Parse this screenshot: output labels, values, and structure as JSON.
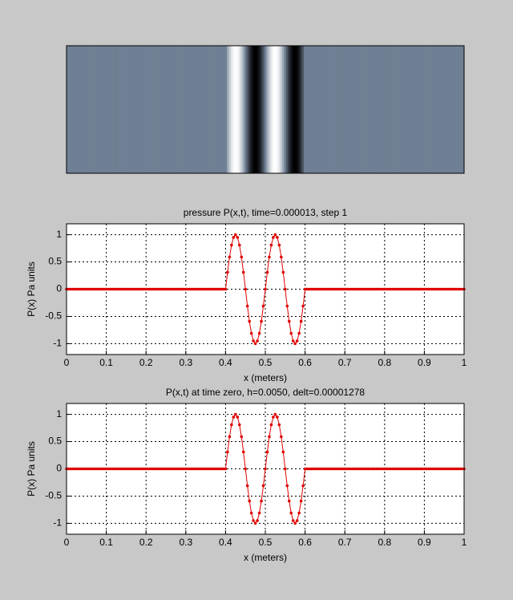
{
  "chart_data": [
    {
      "type": "image",
      "x": [
        0,
        0.005,
        0.01,
        0.015,
        0.02,
        0.025,
        0.03,
        0.035,
        0.04,
        0.045,
        0.05,
        0.055,
        0.06,
        0.065,
        0.07,
        0.075,
        0.08,
        0.085,
        0.09,
        0.095,
        0.1,
        0.105,
        0.11,
        0.115,
        0.12,
        0.125,
        0.13,
        0.135,
        0.14,
        0.145,
        0.15,
        0.155,
        0.16,
        0.165,
        0.17,
        0.175,
        0.18,
        0.185,
        0.19,
        0.195,
        0.2,
        0.205,
        0.21,
        0.215,
        0.22,
        0.225,
        0.23,
        0.235,
        0.24,
        0.245,
        0.25,
        0.255,
        0.26,
        0.265,
        0.27,
        0.275,
        0.28,
        0.285,
        0.29,
        0.295,
        0.3,
        0.305,
        0.31,
        0.315,
        0.32,
        0.325,
        0.33,
        0.335,
        0.34,
        0.345,
        0.35,
        0.355,
        0.36,
        0.365,
        0.37,
        0.375,
        0.38,
        0.385,
        0.39,
        0.395,
        0.4,
        0.405,
        0.41,
        0.415,
        0.42,
        0.425,
        0.43,
        0.435,
        0.44,
        0.445,
        0.45,
        0.455,
        0.46,
        0.465,
        0.47,
        0.475,
        0.48,
        0.485,
        0.49,
        0.495,
        0.5,
        0.505,
        0.51,
        0.515,
        0.52,
        0.525,
        0.53,
        0.535,
        0.54,
        0.545,
        0.55,
        0.555,
        0.56,
        0.565,
        0.57,
        0.575,
        0.58,
        0.585,
        0.59,
        0.595,
        0.6,
        0.605,
        0.61,
        0.615,
        0.62,
        0.625,
        0.63,
        0.635,
        0.64,
        0.645,
        0.65,
        0.655,
        0.66,
        0.665,
        0.67,
        0.675,
        0.68,
        0.685,
        0.69,
        0.695,
        0.7,
        0.705,
        0.71,
        0.715,
        0.72,
        0.725,
        0.73,
        0.735,
        0.74,
        0.745,
        0.75,
        0.755,
        0.76,
        0.765,
        0.77,
        0.775,
        0.78,
        0.785,
        0.79,
        0.795,
        0.8,
        0.805,
        0.81,
        0.815,
        0.82,
        0.825,
        0.83,
        0.835,
        0.84,
        0.845,
        0.85,
        0.855,
        0.86,
        0.865,
        0.87,
        0.875,
        0.88,
        0.885,
        0.89,
        0.895,
        0.9,
        0.905,
        0.91,
        0.915,
        0.92,
        0.925,
        0.93,
        0.935,
        0.94,
        0.945,
        0.95,
        0.955,
        0.96,
        0.965,
        0.97,
        0.975,
        0.98,
        0.985,
        0.99,
        0.995,
        1
      ],
      "values": [
        0,
        0,
        0,
        0,
        0,
        0,
        0,
        0,
        0,
        0,
        0,
        0,
        0,
        0,
        0,
        0,
        0,
        0,
        0,
        0,
        0,
        0,
        0,
        0,
        0,
        0,
        0,
        0,
        0,
        0,
        0,
        0,
        0,
        0,
        0,
        0,
        0,
        0,
        0,
        0,
        0,
        0,
        0,
        0,
        0,
        0,
        0,
        0,
        0,
        0,
        0,
        0,
        0,
        0,
        0,
        0,
        0,
        0,
        0,
        0,
        0,
        0,
        0,
        0,
        0,
        0,
        0,
        0,
        0,
        0,
        0,
        0,
        0,
        0,
        0,
        0,
        0,
        0,
        0,
        0,
        0,
        0.31,
        0.59,
        0.81,
        0.95,
        1,
        0.95,
        0.81,
        0.59,
        0.31,
        0,
        -0.31,
        -0.59,
        -0.81,
        -0.95,
        -1,
        -0.95,
        -0.81,
        -0.59,
        -0.31,
        0,
        0.31,
        0.59,
        0.81,
        0.95,
        1,
        0.95,
        0.81,
        0.59,
        0.31,
        0,
        -0.31,
        -0.59,
        -0.81,
        -0.95,
        -1,
        -0.95,
        -0.81,
        -0.59,
        -0.31,
        0,
        0,
        0,
        0,
        0,
        0,
        0,
        0,
        0,
        0,
        0,
        0,
        0,
        0,
        0,
        0,
        0,
        0,
        0,
        0,
        0,
        0,
        0,
        0,
        0,
        0,
        0,
        0,
        0,
        0,
        0,
        0,
        0,
        0,
        0,
        0,
        0,
        0,
        0,
        0,
        0,
        0,
        0,
        0,
        0,
        0,
        0,
        0,
        0,
        0,
        0,
        0,
        0,
        0,
        0,
        0,
        0,
        0,
        0,
        0,
        0,
        0,
        0,
        0,
        0,
        0,
        0,
        0,
        0,
        0,
        0,
        0,
        0,
        0,
        0,
        0,
        0,
        0,
        0,
        0,
        0
      ],
      "colors": [
        "#000000",
        "#6f7f94",
        "#ffffff"
      ]
    },
    {
      "type": "line",
      "title": "pressure P(x,t), time=0.000013, step 1",
      "xlabel": "x (meters)",
      "ylabel": "P(x) Pa units",
      "x": [
        0,
        0.005,
        0.01,
        0.015,
        0.02,
        0.025,
        0.03,
        0.035,
        0.04,
        0.045,
        0.05,
        0.055,
        0.06,
        0.065,
        0.07,
        0.075,
        0.08,
        0.085,
        0.09,
        0.095,
        0.1,
        0.105,
        0.11,
        0.115,
        0.12,
        0.125,
        0.13,
        0.135,
        0.14,
        0.145,
        0.15,
        0.155,
        0.16,
        0.165,
        0.17,
        0.175,
        0.18,
        0.185,
        0.19,
        0.195,
        0.2,
        0.205,
        0.21,
        0.215,
        0.22,
        0.225,
        0.23,
        0.235,
        0.24,
        0.245,
        0.25,
        0.255,
        0.26,
        0.265,
        0.27,
        0.275,
        0.28,
        0.285,
        0.29,
        0.295,
        0.3,
        0.305,
        0.31,
        0.315,
        0.32,
        0.325,
        0.33,
        0.335,
        0.34,
        0.345,
        0.35,
        0.355,
        0.36,
        0.365,
        0.37,
        0.375,
        0.38,
        0.385,
        0.39,
        0.395,
        0.4,
        0.405,
        0.41,
        0.415,
        0.42,
        0.425,
        0.43,
        0.435,
        0.44,
        0.445,
        0.45,
        0.455,
        0.46,
        0.465,
        0.47,
        0.475,
        0.48,
        0.485,
        0.49,
        0.495,
        0.5,
        0.505,
        0.51,
        0.515,
        0.52,
        0.525,
        0.53,
        0.535,
        0.54,
        0.545,
        0.55,
        0.555,
        0.56,
        0.565,
        0.57,
        0.575,
        0.58,
        0.585,
        0.59,
        0.595,
        0.6,
        0.605,
        0.61,
        0.615,
        0.62,
        0.625,
        0.63,
        0.635,
        0.64,
        0.645,
        0.65,
        0.655,
        0.66,
        0.665,
        0.67,
        0.675,
        0.68,
        0.685,
        0.69,
        0.695,
        0.7,
        0.705,
        0.71,
        0.715,
        0.72,
        0.725,
        0.73,
        0.735,
        0.74,
        0.745,
        0.75,
        0.755,
        0.76,
        0.765,
        0.77,
        0.775,
        0.78,
        0.785,
        0.79,
        0.795,
        0.8,
        0.805,
        0.81,
        0.815,
        0.82,
        0.825,
        0.83,
        0.835,
        0.84,
        0.845,
        0.85,
        0.855,
        0.86,
        0.865,
        0.87,
        0.875,
        0.88,
        0.885,
        0.89,
        0.895,
        0.9,
        0.905,
        0.91,
        0.915,
        0.92,
        0.925,
        0.93,
        0.935,
        0.94,
        0.945,
        0.95,
        0.955,
        0.96,
        0.965,
        0.97,
        0.975,
        0.98,
        0.985,
        0.99,
        0.995,
        1
      ],
      "values": [
        0,
        0,
        0,
        0,
        0,
        0,
        0,
        0,
        0,
        0,
        0,
        0,
        0,
        0,
        0,
        0,
        0,
        0,
        0,
        0,
        0,
        0,
        0,
        0,
        0,
        0,
        0,
        0,
        0,
        0,
        0,
        0,
        0,
        0,
        0,
        0,
        0,
        0,
        0,
        0,
        0,
        0,
        0,
        0,
        0,
        0,
        0,
        0,
        0,
        0,
        0,
        0,
        0,
        0,
        0,
        0,
        0,
        0,
        0,
        0,
        0,
        0,
        0,
        0,
        0,
        0,
        0,
        0,
        0,
        0,
        0,
        0,
        0,
        0,
        0,
        0,
        0,
        0,
        0,
        0,
        0,
        0.31,
        0.59,
        0.81,
        0.95,
        1,
        0.95,
        0.81,
        0.59,
        0.31,
        0,
        -0.31,
        -0.59,
        -0.81,
        -0.95,
        -1,
        -0.95,
        -0.81,
        -0.59,
        -0.31,
        0,
        0.31,
        0.59,
        0.81,
        0.95,
        1,
        0.95,
        0.81,
        0.59,
        0.31,
        0,
        -0.31,
        -0.59,
        -0.81,
        -0.95,
        -1,
        -0.95,
        -0.81,
        -0.59,
        -0.31,
        0,
        0,
        0,
        0,
        0,
        0,
        0,
        0,
        0,
        0,
        0,
        0,
        0,
        0,
        0,
        0,
        0,
        0,
        0,
        0,
        0,
        0,
        0,
        0,
        0,
        0,
        0,
        0,
        0,
        0,
        0,
        0,
        0,
        0,
        0,
        0,
        0,
        0,
        0,
        0,
        0,
        0,
        0,
        0,
        0,
        0,
        0,
        0,
        0,
        0,
        0,
        0,
        0,
        0,
        0,
        0,
        0,
        0,
        0,
        0,
        0,
        0,
        0,
        0,
        0,
        0,
        0,
        0,
        0,
        0,
        0,
        0,
        0,
        0,
        0,
        0,
        0,
        0,
        0,
        0,
        0
      ],
      "color": "#e00000",
      "xlim": [
        0,
        1
      ],
      "ylim": [
        -1.2,
        1.2
      ],
      "xticks": [
        0,
        0.1,
        0.2,
        0.3,
        0.4,
        0.5,
        0.6,
        0.7,
        0.8,
        0.9,
        1
      ],
      "yticks": [
        -1,
        -0.5,
        0,
        0.5,
        1
      ],
      "grid": true
    },
    {
      "type": "line",
      "title": "P(x,t) at time zero, h=0.0050, delt=0.00001278",
      "xlabel": "x (meters)",
      "ylabel": "P(x) Pa units",
      "x": [
        0,
        0.005,
        0.01,
        0.015,
        0.02,
        0.025,
        0.03,
        0.035,
        0.04,
        0.045,
        0.05,
        0.055,
        0.06,
        0.065,
        0.07,
        0.075,
        0.08,
        0.085,
        0.09,
        0.095,
        0.1,
        0.105,
        0.11,
        0.115,
        0.12,
        0.125,
        0.13,
        0.135,
        0.14,
        0.145,
        0.15,
        0.155,
        0.16,
        0.165,
        0.17,
        0.175,
        0.18,
        0.185,
        0.19,
        0.195,
        0.2,
        0.205,
        0.21,
        0.215,
        0.22,
        0.225,
        0.23,
        0.235,
        0.24,
        0.245,
        0.25,
        0.255,
        0.26,
        0.265,
        0.27,
        0.275,
        0.28,
        0.285,
        0.29,
        0.295,
        0.3,
        0.305,
        0.31,
        0.315,
        0.32,
        0.325,
        0.33,
        0.335,
        0.34,
        0.345,
        0.35,
        0.355,
        0.36,
        0.365,
        0.37,
        0.375,
        0.38,
        0.385,
        0.39,
        0.395,
        0.4,
        0.405,
        0.41,
        0.415,
        0.42,
        0.425,
        0.43,
        0.435,
        0.44,
        0.445,
        0.45,
        0.455,
        0.46,
        0.465,
        0.47,
        0.475,
        0.48,
        0.485,
        0.49,
        0.495,
        0.5,
        0.505,
        0.51,
        0.515,
        0.52,
        0.525,
        0.53,
        0.535,
        0.54,
        0.545,
        0.55,
        0.555,
        0.56,
        0.565,
        0.57,
        0.575,
        0.58,
        0.585,
        0.59,
        0.595,
        0.6,
        0.605,
        0.61,
        0.615,
        0.62,
        0.625,
        0.63,
        0.635,
        0.64,
        0.645,
        0.65,
        0.655,
        0.66,
        0.665,
        0.67,
        0.675,
        0.68,
        0.685,
        0.69,
        0.695,
        0.7,
        0.705,
        0.71,
        0.715,
        0.72,
        0.725,
        0.73,
        0.735,
        0.74,
        0.745,
        0.75,
        0.755,
        0.76,
        0.765,
        0.77,
        0.775,
        0.78,
        0.785,
        0.79,
        0.795,
        0.8,
        0.805,
        0.81,
        0.815,
        0.82,
        0.825,
        0.83,
        0.835,
        0.84,
        0.845,
        0.85,
        0.855,
        0.86,
        0.865,
        0.87,
        0.875,
        0.88,
        0.885,
        0.89,
        0.895,
        0.9,
        0.905,
        0.91,
        0.915,
        0.92,
        0.925,
        0.93,
        0.935,
        0.94,
        0.945,
        0.95,
        0.955,
        0.96,
        0.965,
        0.97,
        0.975,
        0.98,
        0.985,
        0.99,
        0.995,
        1
      ],
      "values": [
        0,
        0,
        0,
        0,
        0,
        0,
        0,
        0,
        0,
        0,
        0,
        0,
        0,
        0,
        0,
        0,
        0,
        0,
        0,
        0,
        0,
        0,
        0,
        0,
        0,
        0,
        0,
        0,
        0,
        0,
        0,
        0,
        0,
        0,
        0,
        0,
        0,
        0,
        0,
        0,
        0,
        0,
        0,
        0,
        0,
        0,
        0,
        0,
        0,
        0,
        0,
        0,
        0,
        0,
        0,
        0,
        0,
        0,
        0,
        0,
        0,
        0,
        0,
        0,
        0,
        0,
        0,
        0,
        0,
        0,
        0,
        0,
        0,
        0,
        0,
        0,
        0,
        0,
        0,
        0,
        0,
        0.31,
        0.59,
        0.81,
        0.95,
        1,
        0.95,
        0.81,
        0.59,
        0.31,
        0,
        -0.31,
        -0.59,
        -0.81,
        -0.95,
        -1,
        -0.95,
        -0.81,
        -0.59,
        -0.31,
        0,
        0.31,
        0.59,
        0.81,
        0.95,
        1,
        0.95,
        0.81,
        0.59,
        0.31,
        0,
        -0.31,
        -0.59,
        -0.81,
        -0.95,
        -1,
        -0.95,
        -0.81,
        -0.59,
        -0.31,
        0,
        0,
        0,
        0,
        0,
        0,
        0,
        0,
        0,
        0,
        0,
        0,
        0,
        0,
        0,
        0,
        0,
        0,
        0,
        0,
        0,
        0,
        0,
        0,
        0,
        0,
        0,
        0,
        0,
        0,
        0,
        0,
        0,
        0,
        0,
        0,
        0,
        0,
        0,
        0,
        0,
        0,
        0,
        0,
        0,
        0,
        0,
        0,
        0,
        0,
        0,
        0,
        0,
        0,
        0,
        0,
        0,
        0,
        0,
        0,
        0,
        0,
        0,
        0,
        0,
        0,
        0,
        0,
        0,
        0,
        0,
        0,
        0,
        0,
        0,
        0,
        0,
        0,
        0,
        0,
        0
      ],
      "color": "#e00000",
      "xlim": [
        0,
        1
      ],
      "ylim": [
        -1.2,
        1.2
      ],
      "xticks": [
        0,
        0.1,
        0.2,
        0.3,
        0.4,
        0.5,
        0.6,
        0.7,
        0.8,
        0.9,
        1
      ],
      "yticks": [
        -1,
        -0.5,
        0,
        0.5,
        1
      ],
      "grid": true
    }
  ]
}
